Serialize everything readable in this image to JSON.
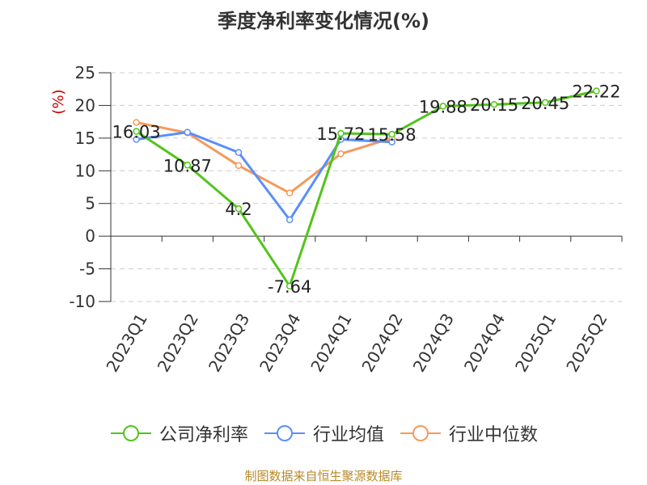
{
  "chart_data": {
    "type": "line",
    "title": "季度净利率变化情况(%)",
    "ylabel": "(%)",
    "ylim": [
      -10,
      25
    ],
    "yticks": [
      25,
      20,
      15,
      10,
      5,
      0,
      -5,
      -10
    ],
    "grid": true,
    "legend_position": "bottom",
    "categories": [
      "2023Q1",
      "2023Q2",
      "2023Q3",
      "2023Q4",
      "2024Q1",
      "2024Q2",
      "2024Q3",
      "2024Q4",
      "2025Q1",
      "2025Q2"
    ],
    "series": [
      {
        "name": "公司净利率",
        "color": "#52c41a",
        "values": [
          16.03,
          10.87,
          4.2,
          -7.64,
          15.72,
          15.58,
          19.88,
          20.15,
          20.45,
          22.22
        ],
        "labels": [
          "16.03",
          "10.87",
          "4.2",
          "-7.64",
          "15.72",
          "15.58",
          "19.88",
          "20.15",
          "20.45",
          "22.22"
        ]
      },
      {
        "name": "行业均值",
        "color": "#5b8ff9",
        "values": [
          14.8,
          15.9,
          12.8,
          2.5,
          14.8,
          14.4,
          null,
          null,
          null,
          null
        ]
      },
      {
        "name": "行业中位数",
        "color": "#f59a5a",
        "values": [
          17.4,
          15.8,
          10.8,
          6.6,
          12.6,
          15.0,
          null,
          null,
          null,
          null
        ]
      }
    ]
  },
  "source": "制图数据来自恒生聚源数据库"
}
